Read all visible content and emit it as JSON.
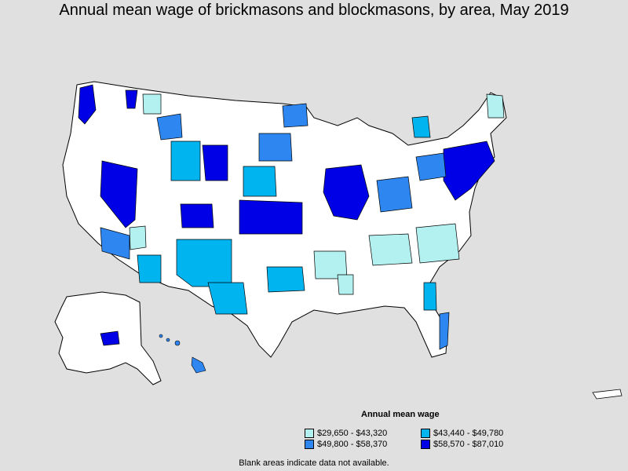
{
  "title": "Annual mean wage of brickmasons and blockmasons, by area, May 2019",
  "legend": {
    "title": "Annual mean wage",
    "items": [
      {
        "label": "$29,650 - $43,320",
        "color": "#b3f0f0"
      },
      {
        "label": "$43,440 - $49,780",
        "color": "#00b4f0"
      },
      {
        "label": "$49,800 - $58,370",
        "color": "#2e86f0"
      },
      {
        "label": "$58,570 - $87,010",
        "color": "#0000e6"
      }
    ]
  },
  "note": "Blank areas indicate data not available.",
  "colors": {
    "background": "#e0e0e0",
    "blank": "#ffffff",
    "border": "#000000"
  }
}
